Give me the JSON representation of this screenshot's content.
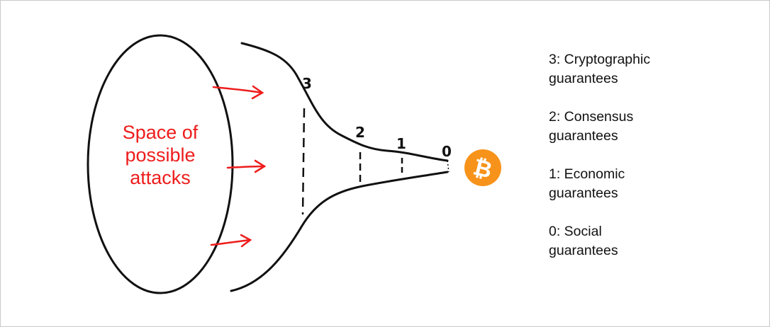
{
  "attack_space": {
    "lines": [
      "Space of",
      "possible",
      "attacks"
    ]
  },
  "levels": [
    "3",
    "2",
    "1",
    "0"
  ],
  "legend": [
    {
      "line1": "3: Cryptographic",
      "line2": "guarantees"
    },
    {
      "line1": "2: Consensus",
      "line2": "guarantees"
    },
    {
      "line1": "1: Economic",
      "line2": "guarantees"
    },
    {
      "line1": "0: Social",
      "line2": "guarantees"
    }
  ],
  "bitcoin_icon": {
    "name": "bitcoin-icon",
    "glyph": "₿",
    "color": "#f7931a"
  },
  "colors": {
    "arrow": "#ee1c1c",
    "ink": "#111111"
  }
}
